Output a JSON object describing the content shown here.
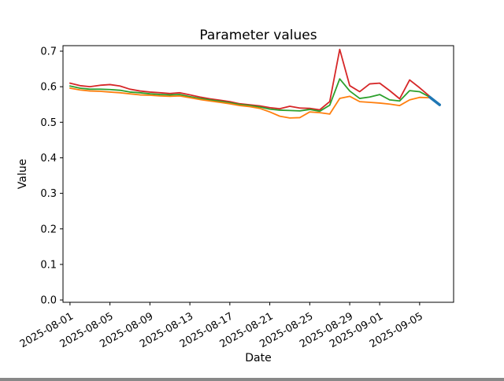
{
  "chart_data": {
    "type": "line",
    "title": "Parameter values",
    "xlabel": "Date",
    "ylabel": "Value",
    "grid": false,
    "legend": "none",
    "background": "#ffffff",
    "axis_color": "#000000",
    "x_dates": [
      "2025-08-01",
      "2025-08-02",
      "2025-08-03",
      "2025-08-04",
      "2025-08-05",
      "2025-08-06",
      "2025-08-07",
      "2025-08-08",
      "2025-08-09",
      "2025-08-10",
      "2025-08-11",
      "2025-08-12",
      "2025-08-13",
      "2025-08-14",
      "2025-08-15",
      "2025-08-16",
      "2025-08-17",
      "2025-08-18",
      "2025-08-19",
      "2025-08-20",
      "2025-08-21",
      "2025-08-22",
      "2025-08-23",
      "2025-08-24",
      "2025-08-25",
      "2025-08-26",
      "2025-08-27",
      "2025-08-28",
      "2025-08-29",
      "2025-08-30",
      "2025-08-31",
      "2025-09-01",
      "2025-09-02",
      "2025-09-03",
      "2025-09-04",
      "2025-09-05",
      "2025-09-06",
      "2025-09-07"
    ],
    "xtick_labels": [
      "2025-08-01",
      "2025-08-05",
      "2025-08-09",
      "2025-08-13",
      "2025-08-17",
      "2025-08-21",
      "2025-08-25",
      "2025-08-29",
      "2025-09-01",
      "2025-09-05"
    ],
    "xtick_days": [
      0,
      4,
      8,
      12,
      16,
      20,
      24,
      28,
      31,
      35
    ],
    "ytick_labels": [
      "0.0",
      "0.1",
      "0.2",
      "0.3",
      "0.4",
      "0.5",
      "0.6",
      "0.7"
    ],
    "ytick_values": [
      0.0,
      0.1,
      0.2,
      0.3,
      0.4,
      0.5,
      0.6,
      0.7
    ],
    "ylim": [
      -0.0065,
      0.7155
    ],
    "xlim_days": [
      -0.7,
      38.4
    ],
    "series": [
      {
        "name": "red",
        "color": "#d62728",
        "linewidth": 1.8,
        "start_day": 0,
        "values": [
          0.61,
          0.603,
          0.6,
          0.604,
          0.606,
          0.602,
          0.593,
          0.588,
          0.585,
          0.583,
          0.581,
          0.583,
          0.577,
          0.571,
          0.566,
          0.562,
          0.558,
          0.552,
          0.549,
          0.546,
          0.541,
          0.538,
          0.545,
          0.54,
          0.539,
          0.535,
          0.558,
          0.705,
          0.603,
          0.586,
          0.608,
          0.61,
          0.589,
          0.566,
          0.619,
          0.597,
          0.573
        ]
      },
      {
        "name": "green",
        "color": "#2ca02c",
        "linewidth": 1.8,
        "start_day": 0,
        "values": [
          0.602,
          0.596,
          0.593,
          0.593,
          0.592,
          0.59,
          0.585,
          0.583,
          0.58,
          0.578,
          0.577,
          0.578,
          0.572,
          0.567,
          0.563,
          0.559,
          0.555,
          0.55,
          0.547,
          0.543,
          0.537,
          0.534,
          0.533,
          0.532,
          0.536,
          0.531,
          0.548,
          0.622,
          0.588,
          0.567,
          0.571,
          0.578,
          0.563,
          0.56,
          0.589,
          0.586,
          0.571
        ]
      },
      {
        "name": "orange",
        "color": "#ff7f0e",
        "linewidth": 1.8,
        "start_day": 0,
        "values": [
          0.596,
          0.591,
          0.588,
          0.587,
          0.585,
          0.583,
          0.58,
          0.577,
          0.576,
          0.574,
          0.573,
          0.574,
          0.569,
          0.564,
          0.56,
          0.556,
          0.552,
          0.547,
          0.544,
          0.539,
          0.529,
          0.517,
          0.512,
          0.513,
          0.529,
          0.527,
          0.523,
          0.567,
          0.573,
          0.558,
          0.556,
          0.554,
          0.551,
          0.547,
          0.563,
          0.57,
          0.569
        ]
      },
      {
        "name": "blue-highlight",
        "color": "#1f77b4",
        "linewidth": 3.5,
        "start_day": 36,
        "values": [
          0.571,
          0.549
        ]
      }
    ]
  }
}
